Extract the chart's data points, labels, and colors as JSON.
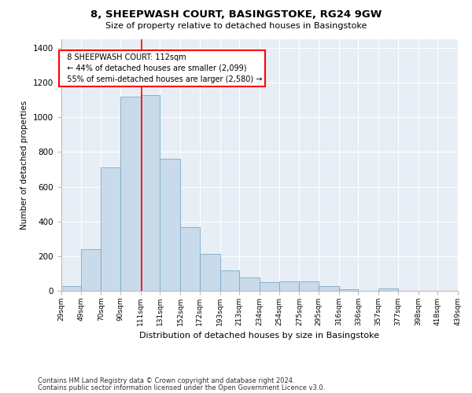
{
  "title": "8, SHEEPWASH COURT, BASINGSTOKE, RG24 9GW",
  "subtitle": "Size of property relative to detached houses in Basingstoke",
  "xlabel": "Distribution of detached houses by size in Basingstoke",
  "ylabel": "Number of detached properties",
  "footnote1": "Contains HM Land Registry data © Crown copyright and database right 2024.",
  "footnote2": "Contains public sector information licensed under the Open Government Licence v3.0.",
  "annotation_line1": "8 SHEEPWASH COURT: 112sqm",
  "annotation_line2": "← 44% of detached houses are smaller (2,099)",
  "annotation_line3": "55% of semi-detached houses are larger (2,580) →",
  "bar_color": "#c9daea",
  "bar_edge_color": "#7aaac8",
  "background_color": "#e8eef5",
  "grid_color": "#ffffff",
  "red_line_x": 112,
  "bin_edges": [
    29,
    49,
    70,
    90,
    111,
    131,
    152,
    172,
    193,
    213,
    234,
    254,
    275,
    295,
    316,
    336,
    357,
    377,
    398,
    418,
    439
  ],
  "bar_heights": [
    28,
    240,
    710,
    1120,
    1130,
    760,
    365,
    215,
    120,
    75,
    50,
    55,
    55,
    28,
    8,
    0,
    12,
    0,
    0,
    0
  ],
  "ylim": [
    0,
    1450
  ],
  "yticks": [
    0,
    200,
    400,
    600,
    800,
    1000,
    1200,
    1400
  ]
}
